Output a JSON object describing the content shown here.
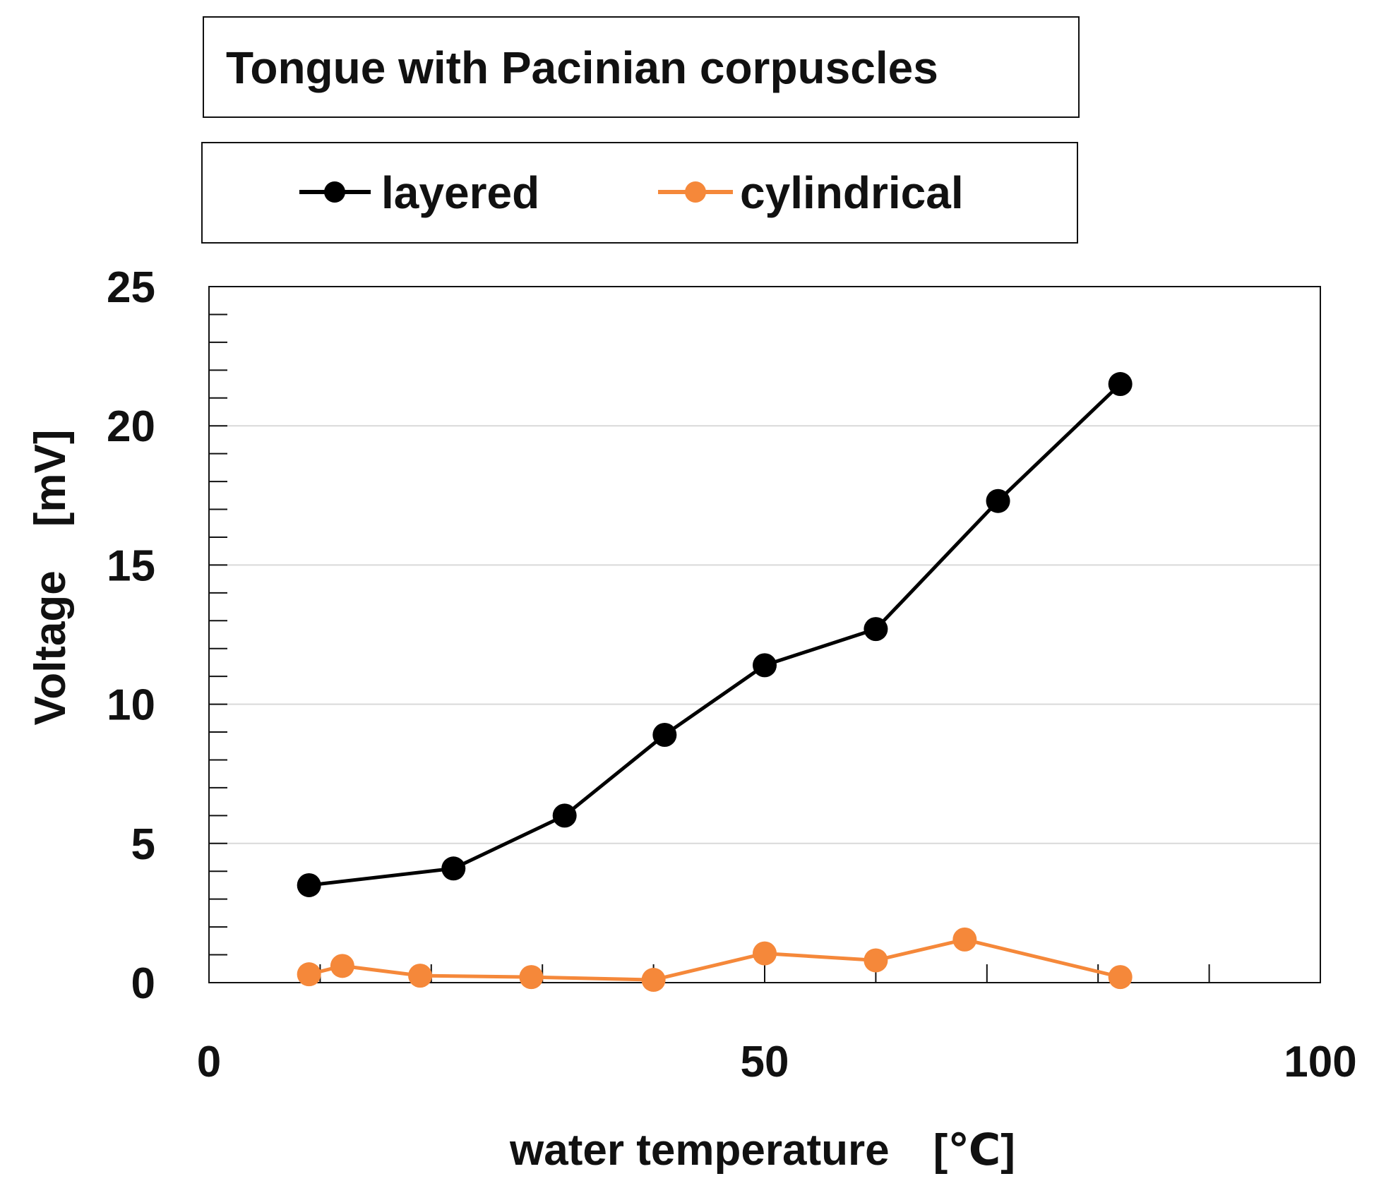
{
  "chart_data": {
    "type": "line",
    "title": "Tongue with Pacinian corpuscles",
    "xlabel": "water temperature　[℃]",
    "ylabel": "Voltage　[mV]",
    "xlim": [
      0,
      100
    ],
    "ylim": [
      0,
      25
    ],
    "xticks": [
      0,
      50,
      100
    ],
    "yticks": [
      0,
      5,
      10,
      15,
      20,
      25
    ],
    "grid": "horizontal major lines",
    "legend_position": "top, above plot",
    "series": [
      {
        "name": "layered",
        "color": "#000000",
        "x": [
          9,
          22,
          32,
          41,
          50,
          60,
          71,
          82
        ],
        "y": [
          3.5,
          4.1,
          6.0,
          8.9,
          11.4,
          12.7,
          17.3,
          21.5
        ]
      },
      {
        "name": "cylindrical",
        "color": "#f5883a",
        "x": [
          9,
          12,
          19,
          29,
          40,
          50,
          60,
          68,
          82
        ],
        "y": [
          0.3,
          0.6,
          0.25,
          0.2,
          0.1,
          1.05,
          0.8,
          1.55,
          0.2
        ]
      }
    ]
  }
}
